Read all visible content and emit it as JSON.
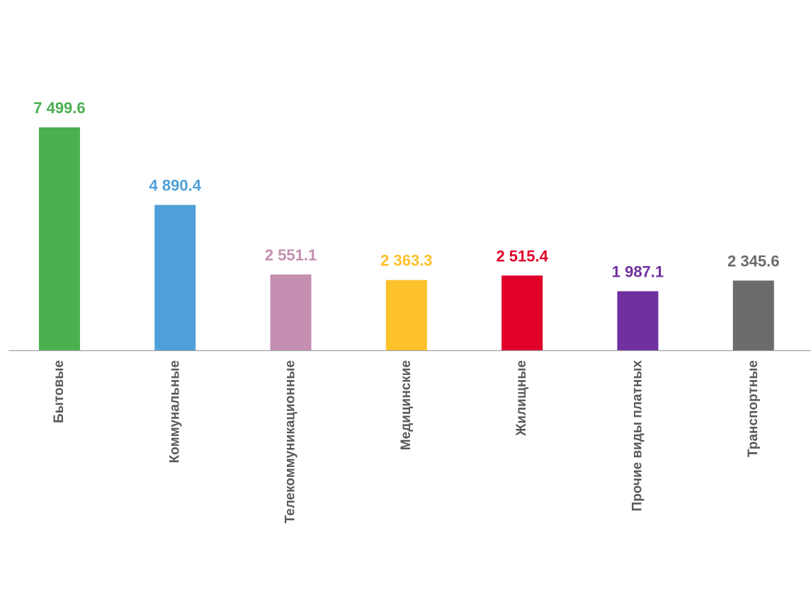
{
  "chart_data": {
    "type": "bar",
    "categories": [
      "Бытовые",
      "Коммунальные",
      "Телекоммуникационные",
      "Медицинские",
      "Жилищные",
      "Прочие виды платных",
      "Транспортные"
    ],
    "values": [
      7499.6,
      4890.4,
      2551.1,
      2363.3,
      2515.4,
      1987.1,
      2345.6
    ],
    "value_labels": [
      "7 499.6",
      "4 890.4",
      "2 551.1",
      "2 363.3",
      "2 515.4",
      "1 987.1",
      "2 345.6"
    ],
    "colors": [
      "#4caf50",
      "#4f9fd8",
      "#c48fb0",
      "#fdc12c",
      "#e0002a",
      "#7030a0",
      "#6b6b6b"
    ]
  }
}
